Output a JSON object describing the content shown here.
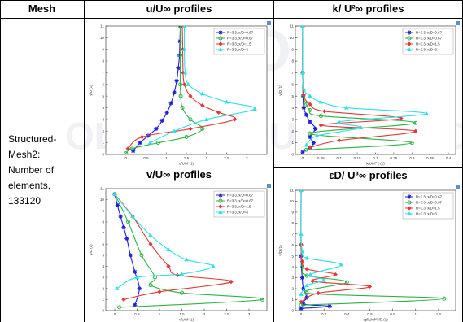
{
  "table": {
    "col_mesh": "Mesh",
    "col_u": "u/U∞ profiles",
    "col_k": "k/ U²∞ profiles",
    "sub_v": "v/U∞ profiles",
    "sub_eps": "εD/ U³∞ profiles",
    "mesh_lines": [
      "Structured-",
      "Mesh2:",
      "Number of",
      "elements,",
      "133120"
    ]
  },
  "watermark": [
    "ROSS",
    "OLOGY",
    "PUBLICATIONS"
  ],
  "colors": {
    "s1": "#1f1fd6",
    "s2": "#2fb34a",
    "s3": "#e23a3a",
    "s4": "#2fe0e8"
  },
  "chart_data": [
    {
      "type": "line",
      "id": "u",
      "xlabel": "u/Uinf (1)",
      "ylabel": "y/D (1)",
      "xlim": [
        -0.5,
        3.5
      ],
      "ylim": [
        0,
        11
      ],
      "xticks": [
        0,
        0.5,
        1,
        1.5,
        2,
        2.5,
        3
      ],
      "yticks": [
        0,
        1,
        2,
        3,
        4,
        5,
        6,
        7,
        8,
        9,
        10,
        11
      ],
      "legend_position": "top-right",
      "series": [
        {
          "name": "R=3.3, x/D=0.67",
          "color": "s1",
          "marker": "star",
          "x": [
            0.18,
            0.35,
            0.55,
            0.75,
            0.9,
            1.02,
            1.12,
            1.2,
            1.26,
            1.3,
            1.33,
            1.34,
            1.35
          ],
          "y": [
            0.3,
            1.0,
            1.6,
            2.2,
            2.9,
            3.6,
            4.4,
            5.3,
            6.3,
            7.4,
            8.5,
            9.7,
            11
          ]
        },
        {
          "name": "R=3.3, x/D=0.67",
          "color": "s2",
          "marker": "circle",
          "x": [
            0.0,
            0.15,
            0.8,
            1.5,
            1.9,
            1.6,
            1.4,
            1.36,
            1.35,
            1.35,
            1.35
          ],
          "y": [
            0.1,
            0.5,
            1.0,
            1.5,
            2.2,
            3.0,
            4.0,
            5.0,
            6.0,
            8.5,
            11
          ]
        },
        {
          "name": "R=3.3, x/D=1.5",
          "color": "s3",
          "marker": "diamond",
          "x": [
            0.05,
            0.4,
            1.6,
            2.7,
            2.3,
            1.9,
            1.6,
            1.45,
            1.42,
            1.41,
            1.4
          ],
          "y": [
            0.5,
            1.5,
            2.2,
            3.0,
            3.6,
            4.2,
            5.0,
            6.0,
            7.0,
            9.0,
            11
          ]
        },
        {
          "name": "R=3.3, x/D=3",
          "color": "s4",
          "marker": "tri",
          "x": [
            0.6,
            1.2,
            2.0,
            3.2,
            2.5,
            1.9,
            1.55,
            1.47,
            1.45,
            1.45
          ],
          "y": [
            1.0,
            2.0,
            3.0,
            3.9,
            4.5,
            5.2,
            6.0,
            7.0,
            9.0,
            11
          ]
        }
      ]
    },
    {
      "type": "line",
      "id": "k",
      "xlabel": "k/Uinf^2 (1)",
      "ylabel": "y/D (1)",
      "xlim": [
        -0.02,
        0.42
      ],
      "ylim": [
        0,
        11
      ],
      "xticks": [
        0,
        0.05,
        0.1,
        0.15,
        0.2,
        0.25,
        0.3,
        0.35,
        0.4
      ],
      "yticks": [
        0,
        1,
        2,
        3,
        4,
        5,
        6,
        7,
        8,
        9,
        10,
        11
      ],
      "legend_position": "top-right",
      "series": [
        {
          "name": "R=3.3, x/D=0.67",
          "color": "s1",
          "marker": "star",
          "x": [
            0.0,
            0.02,
            0.03,
            0.02,
            0.035,
            0.02,
            0.01,
            0.003,
            0.001,
            0.0,
            0.0
          ],
          "y": [
            0.2,
            0.6,
            1.0,
            1.5,
            2.2,
            2.8,
            3.4,
            4.0,
            5.0,
            7.0,
            11
          ]
        },
        {
          "name": "R=3.3, x/D=0.67",
          "color": "s2",
          "marker": "circle",
          "x": [
            0.01,
            0.3,
            0.02,
            0.31,
            0.05,
            0.02,
            0.01,
            0.002,
            0.0,
            0.0
          ],
          "y": [
            0.4,
            1.0,
            1.8,
            2.7,
            3.3,
            3.8,
            4.3,
            5.0,
            7.0,
            11
          ]
        },
        {
          "name": "R=3.3, x/D=1.5",
          "color": "s3",
          "marker": "diamond",
          "x": [
            0.02,
            0.1,
            0.31,
            0.05,
            0.27,
            0.06,
            0.02,
            0.003,
            0.0,
            0.0
          ],
          "y": [
            0.6,
            1.2,
            2.0,
            2.5,
            3.1,
            3.7,
            4.3,
            5.1,
            7.0,
            11
          ]
        },
        {
          "name": "R=3.3, x/D=3",
          "color": "s4",
          "marker": "tri",
          "x": [
            0.01,
            0.04,
            0.16,
            0.1,
            0.34,
            0.12,
            0.05,
            0.02,
            0.003,
            0.0,
            0.0
          ],
          "y": [
            0.8,
            1.6,
            2.3,
            2.8,
            3.5,
            4.0,
            4.5,
            5.0,
            5.6,
            7.0,
            11
          ]
        }
      ]
    },
    {
      "type": "line",
      "id": "v",
      "xlabel": "v/Uinf (1)",
      "ylabel": "y/D (1)",
      "xlim": [
        -0.2,
        3.4
      ],
      "ylim": [
        0,
        11
      ],
      "xticks": [
        0,
        0.5,
        1,
        1.5,
        2,
        2.5,
        3
      ],
      "yticks": [
        0,
        1,
        2,
        3,
        4,
        5,
        6,
        7,
        8,
        9,
        10,
        11
      ],
      "legend_position": "top-right",
      "series": [
        {
          "name": "R=3.3, x/D=0.67",
          "color": "s1",
          "marker": "star",
          "x": [
            0.45,
            0.55,
            0.45,
            0.35,
            0.27,
            0.2,
            0.13,
            0.06,
            0.0
          ],
          "y": [
            0.5,
            2.0,
            3.5,
            5.0,
            6.5,
            7.5,
            8.5,
            9.5,
            10.5
          ]
        },
        {
          "name": "R=3.3, x/D=0.67",
          "color": "s2",
          "marker": "circle",
          "x": [
            0.1,
            3.3,
            1.5,
            0.8,
            0.9,
            0.6,
            0.3,
            0.0
          ],
          "y": [
            0.3,
            1.0,
            1.6,
            2.3,
            3.0,
            5.0,
            8.0,
            10.5
          ]
        },
        {
          "name": "R=3.3, x/D=1.5",
          "color": "s3",
          "marker": "diamond",
          "x": [
            0.2,
            1.0,
            2.6,
            1.4,
            1.2,
            0.8,
            0.4,
            0.0
          ],
          "y": [
            1.0,
            1.7,
            2.6,
            3.2,
            4.0,
            6.0,
            8.5,
            10.5
          ]
        },
        {
          "name": "R=3.3, x/D=3",
          "color": "s4",
          "marker": "tri",
          "x": [
            0.05,
            0.5,
            1.5,
            2.2,
            1.6,
            1.2,
            0.8,
            0.4,
            0.0
          ],
          "y": [
            2.0,
            3.0,
            3.3,
            4.0,
            4.6,
            5.5,
            6.8,
            8.5,
            10.5
          ]
        }
      ]
    },
    {
      "type": "line",
      "id": "eps",
      "xlabel": "epl/Uinf^3/D (1)",
      "ylabel": "y/D (1)",
      "xlim": [
        -0.05,
        1.35
      ],
      "ylim": [
        0,
        11
      ],
      "xticks": [
        0,
        0.2,
        0.4,
        0.6,
        0.8,
        1,
        1.2
      ],
      "yticks": [
        0,
        1,
        2,
        3,
        4,
        5,
        6,
        7,
        8,
        9,
        10,
        11
      ],
      "legend_position": "top-right",
      "series": [
        {
          "name": "R=3.3, x/D=0.67",
          "color": "s1",
          "marker": "star",
          "x": [
            0.0,
            0.25,
            0.02,
            0.05,
            0.02,
            0.01,
            0.0,
            0.0
          ],
          "y": [
            0.2,
            0.4,
            0.6,
            1.2,
            2.0,
            3.0,
            5.0,
            11
          ]
        },
        {
          "name": "R=3.3, x/D=0.67",
          "color": "s2",
          "marker": "circle",
          "x": [
            0.0,
            1.25,
            0.05,
            0.4,
            0.05,
            0.01,
            0.0,
            0.0
          ],
          "y": [
            0.5,
            1.1,
            1.6,
            2.6,
            3.2,
            4.0,
            6.0,
            11
          ]
        },
        {
          "name": "R=3.3, x/D=1.5",
          "color": "s3",
          "marker": "diamond",
          "x": [
            0.0,
            0.15,
            0.6,
            0.1,
            0.3,
            0.05,
            0.01,
            0.0,
            0.0
          ],
          "y": [
            0.8,
            1.6,
            2.2,
            2.7,
            3.3,
            3.8,
            4.5,
            6.0,
            11
          ]
        },
        {
          "name": "R=3.3, x/D=3",
          "color": "s4",
          "marker": "tri",
          "x": [
            0.0,
            0.05,
            0.2,
            0.08,
            0.35,
            0.05,
            0.01,
            0.0,
            0.0
          ],
          "y": [
            1.5,
            2.3,
            2.8,
            3.3,
            4.2,
            4.8,
            5.4,
            7.0,
            11
          ]
        }
      ]
    }
  ]
}
